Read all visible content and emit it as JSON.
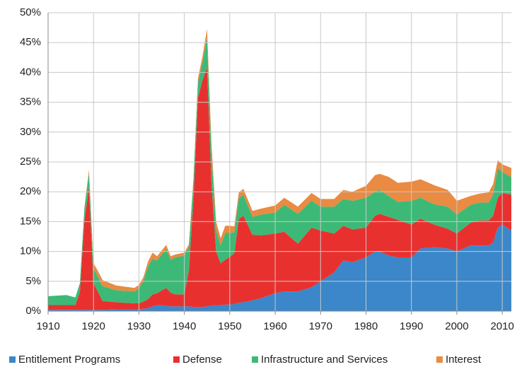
{
  "chart_data": {
    "type": "stacked_area",
    "x": [
      1910,
      1914,
      1916,
      1917,
      1918,
      1919,
      1920,
      1921,
      1922,
      1925,
      1929,
      1930,
      1931,
      1932,
      1933,
      1934,
      1936,
      1937,
      1938,
      1940,
      1941,
      1942,
      1943,
      1944,
      1945,
      1946,
      1947,
      1948,
      1949,
      1950,
      1951,
      1952,
      1953,
      1955,
      1957,
      1960,
      1962,
      1965,
      1968,
      1970,
      1973,
      1975,
      1977,
      1980,
      1982,
      1983,
      1985,
      1987,
      1990,
      1992,
      1995,
      1998,
      2000,
      2003,
      2005,
      2007,
      2008,
      2009,
      2010,
      2012
    ],
    "series": [
      {
        "name": "Entitlement Programs",
        "color": "#3b87c9",
        "values": [
          0.2,
          0.2,
          0.2,
          0.2,
          0.2,
          0.2,
          0.2,
          0.2,
          0.2,
          0.3,
          0.3,
          0.3,
          0.4,
          0.5,
          0.8,
          1,
          0.9,
          0.8,
          0.8,
          0.8,
          0.8,
          0.7,
          0.7,
          0.7,
          0.8,
          0.9,
          1,
          1,
          1.1,
          1.1,
          1.2,
          1.4,
          1.5,
          1.8,
          2.2,
          3,
          3.3,
          3.3,
          4,
          5,
          6.5,
          8.5,
          8.2,
          9,
          10,
          10,
          9.3,
          9,
          9,
          10.5,
          10.7,
          10.5,
          10,
          11,
          11,
          11,
          11.5,
          14,
          14.5,
          13.5
        ]
      },
      {
        "name": "Defense",
        "color": "#e8312f",
        "values": [
          0.8,
          0.8,
          0.8,
          3,
          15,
          20.5,
          4.5,
          3,
          1.5,
          1.2,
          1,
          1,
          1.2,
          1.5,
          2,
          2,
          3,
          2.3,
          2,
          2,
          6,
          18,
          35,
          38,
          40,
          20,
          9,
          7,
          7.5,
          8,
          8.5,
          14,
          14.5,
          11,
          10.5,
          10,
          10,
          8,
          10,
          8.5,
          6.5,
          5.8,
          5.5,
          5,
          6,
          6.3,
          6.5,
          6.3,
          5.5,
          5,
          3.8,
          3.3,
          3,
          3.8,
          4.2,
          4.2,
          4.5,
          5,
          5.3,
          6
        ]
      },
      {
        "name": "Infrastructure and Services",
        "color": "#3db977",
        "values": [
          1.5,
          1.7,
          1.3,
          1.5,
          2,
          2.5,
          2.5,
          2.5,
          2.5,
          2,
          2,
          2.5,
          3.5,
          5.5,
          6,
          5.5,
          6.5,
          5.5,
          6.2,
          6.5,
          4,
          3,
          2.5,
          3,
          5,
          5,
          3.5,
          3,
          4.5,
          4,
          3.5,
          3.5,
          3.5,
          3,
          3.5,
          3.5,
          4.5,
          5,
          4.5,
          4,
          4.5,
          4.5,
          4.8,
          5,
          4,
          4,
          3.5,
          3,
          4,
          3.5,
          3.4,
          3.7,
          3.2,
          3,
          3,
          3,
          3.5,
          5,
          3.5,
          3
        ]
      },
      {
        "name": "Interest",
        "color": "#e98b42",
        "values": [
          0,
          0,
          0,
          0,
          0.2,
          0.5,
          0.8,
          1,
          1,
          0.8,
          0.6,
          0.6,
          0.6,
          0.8,
          1,
          0.7,
          0.7,
          0.6,
          0.5,
          0.5,
          0.4,
          0.5,
          0.8,
          1,
          1.5,
          1.8,
          1.5,
          1.2,
          1.2,
          1.2,
          1,
          1,
          1,
          1,
          1,
          1.2,
          1.2,
          1.2,
          1.3,
          1.3,
          1.3,
          1.5,
          1.5,
          2,
          2.8,
          2.7,
          3.2,
          3.2,
          3.2,
          3.1,
          3.2,
          2.8,
          2.3,
          1.5,
          1.5,
          1.7,
          1.8,
          1.3,
          1.3,
          1.5
        ]
      }
    ],
    "xlim": [
      1910,
      2012
    ],
    "xticks": [
      1910,
      1920,
      1930,
      1940,
      1950,
      1960,
      1970,
      1980,
      1990,
      2000,
      2010
    ],
    "ylim": [
      0,
      50
    ],
    "yticks": [
      {
        "value": 0,
        "label": "0%"
      },
      {
        "value": 5,
        "label": "5%"
      },
      {
        "value": 10,
        "label": "10%"
      },
      {
        "value": 15,
        "label": "15%"
      },
      {
        "value": 20,
        "label": "20%"
      },
      {
        "value": 25,
        "label": "25%"
      },
      {
        "value": 30,
        "label": "30%"
      },
      {
        "value": 35,
        "label": "35%"
      },
      {
        "value": 40,
        "label": "40%"
      },
      {
        "value": 45,
        "label": "45%"
      },
      {
        "value": 50,
        "label": "50%"
      }
    ],
    "grid": true,
    "legend": "bottom"
  }
}
